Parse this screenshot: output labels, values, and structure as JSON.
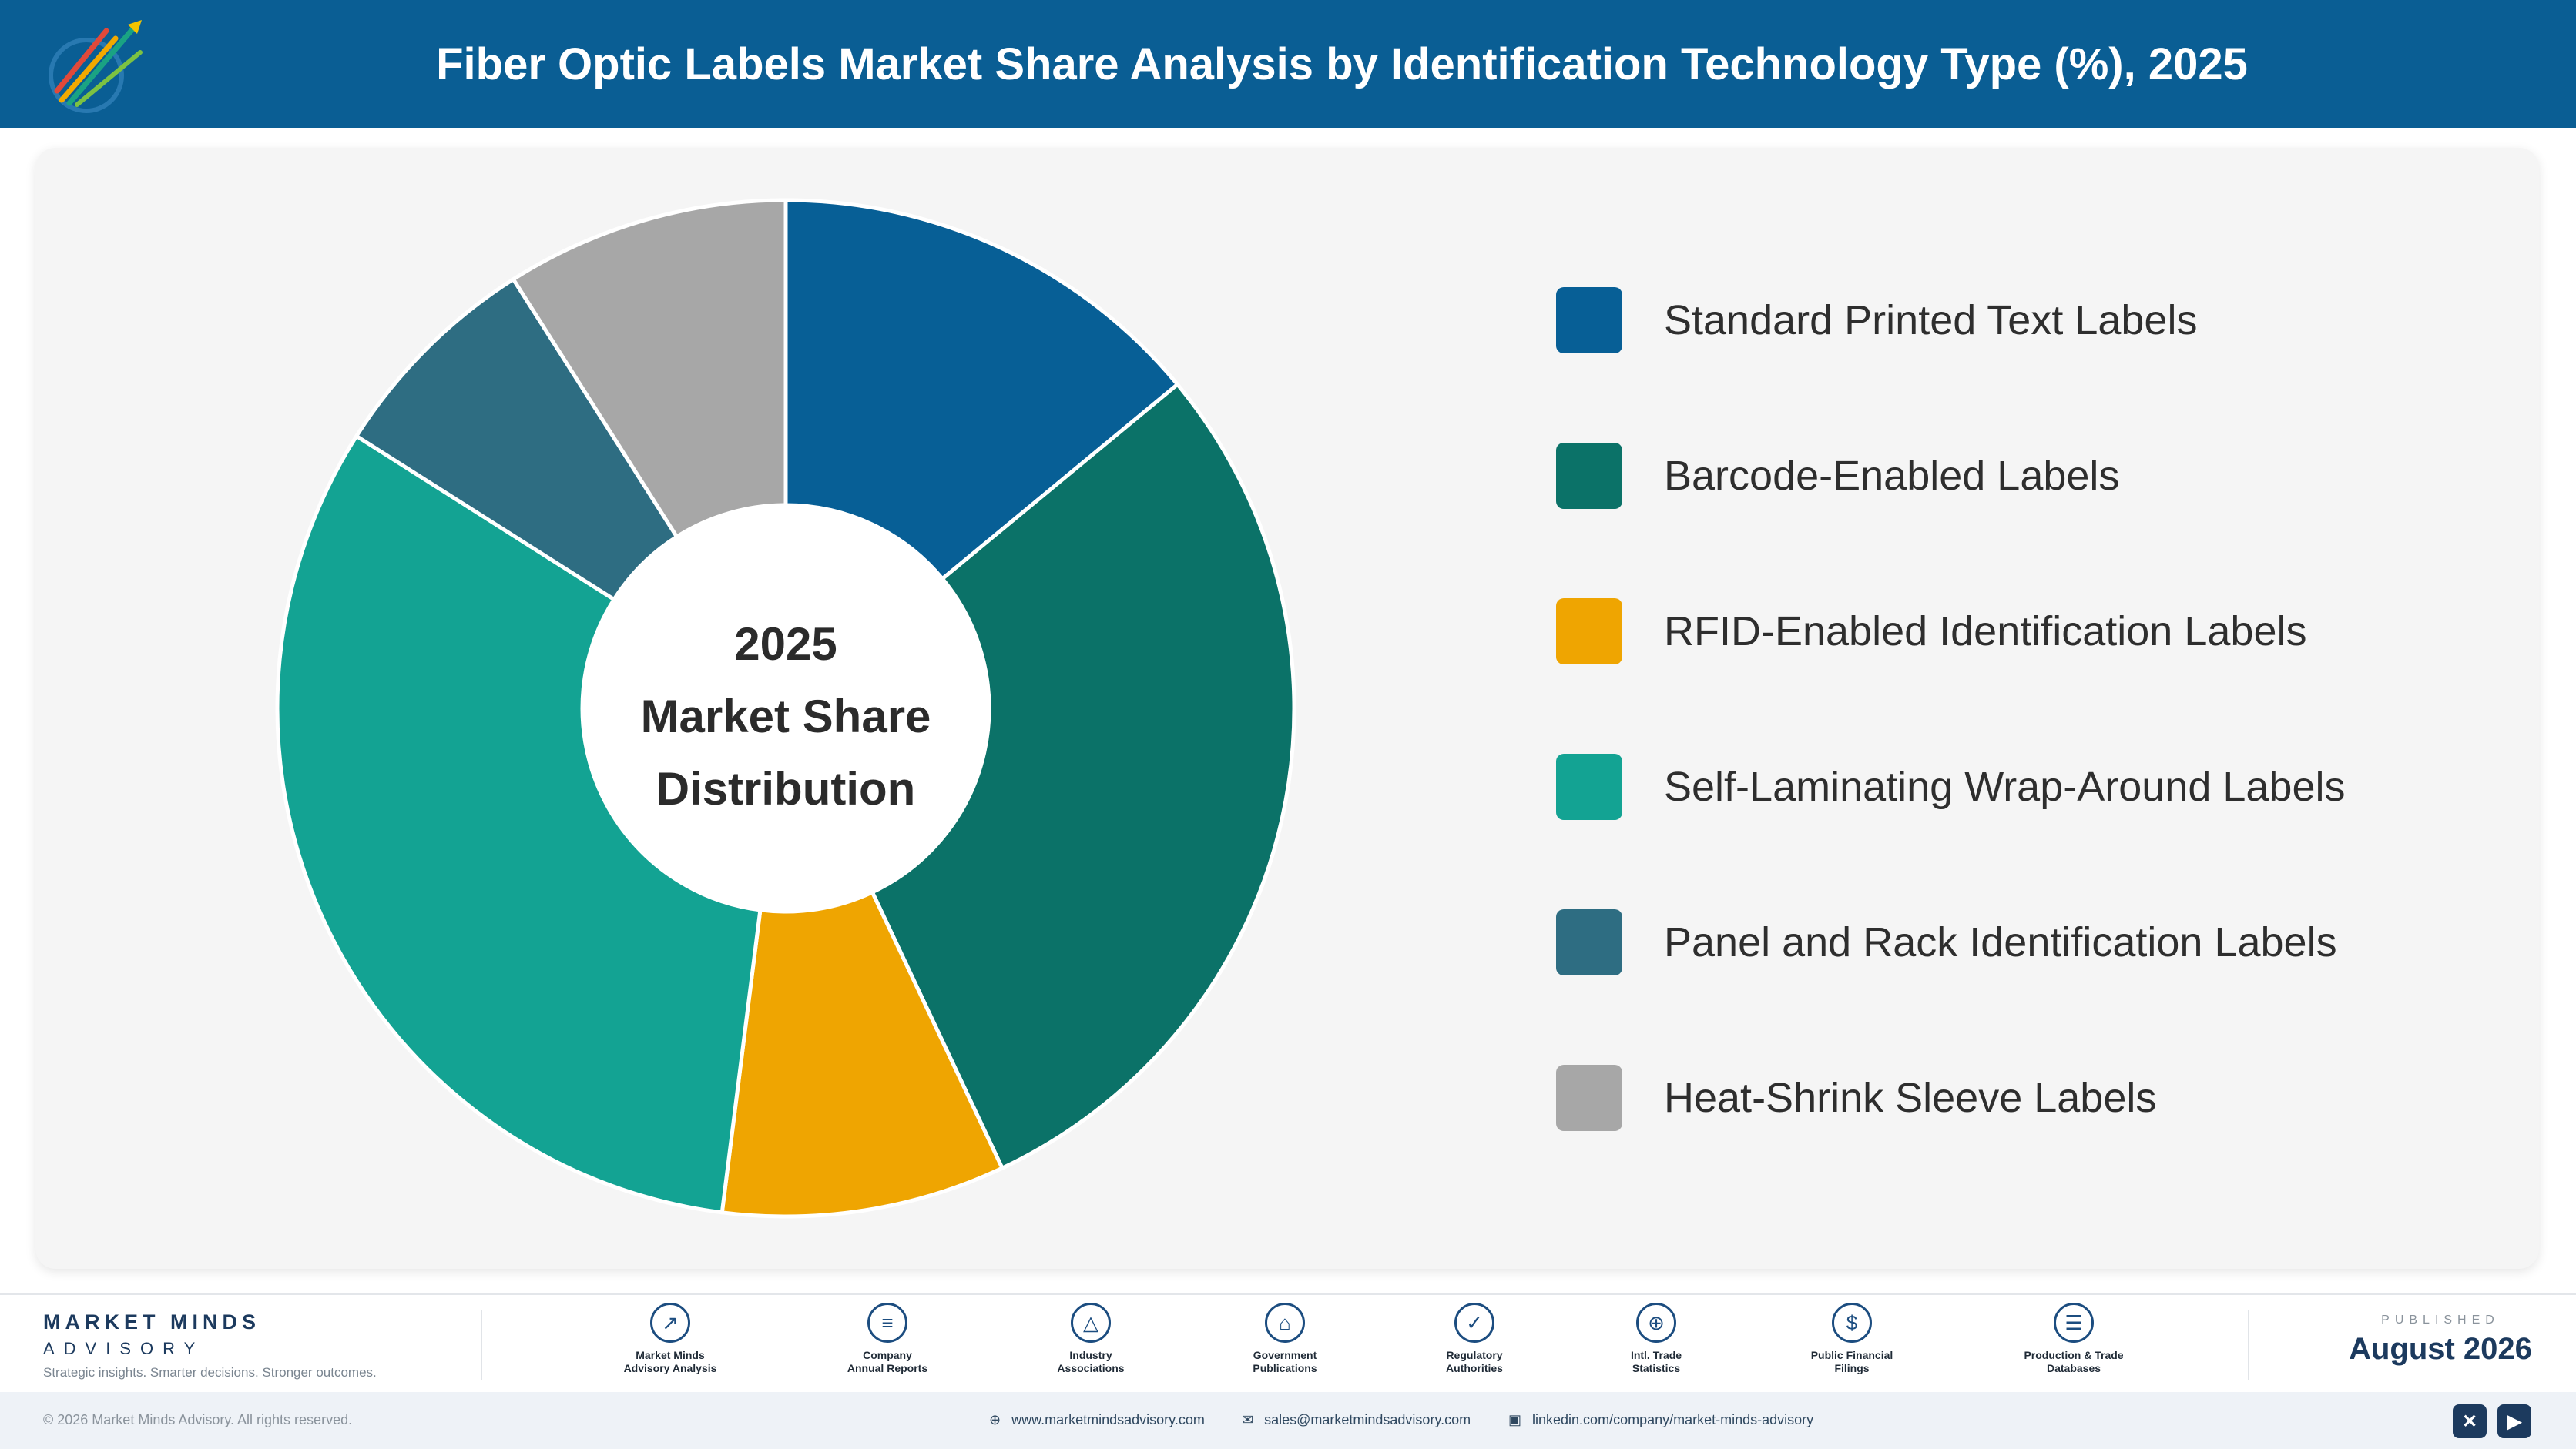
{
  "header": {
    "title": "Fiber Optic Labels Market Share Analysis by Identification Technology Type (%), 2025"
  },
  "chart_data": {
    "type": "pie",
    "title": "Fiber Optic Labels Market Share Analysis by Identification Technology Type (%), 2025",
    "center_text": [
      "2025",
      "Market Share",
      "Distribution"
    ],
    "categories": [
      "Standard Printed Text Labels",
      "Barcode-Enabled Labels",
      "RFID-Enabled Identification Labels",
      "Self-Laminating Wrap-Around Labels",
      "Panel and Rack Identification Labels",
      "Heat-Shrink Sleeve Labels"
    ],
    "values": [
      14,
      29,
      9,
      32,
      7,
      9
    ],
    "colors": [
      "#075f96",
      "#0b7268",
      "#efa501",
      "#13a393",
      "#2e6d82",
      "#a7a7a7"
    ],
    "legend_position": "right",
    "inner_radius_ratio": 0.4
  },
  "footer": {
    "brand": {
      "name": "MARKET MINDS",
      "sub": "ADVISORY",
      "tagline": "Strategic insights. Smarter decisions. Stronger outcomes."
    },
    "sources": [
      {
        "icon": "trend-chart-icon",
        "glyph": "↗",
        "line1": "Market Minds",
        "line2": "Advisory Analysis"
      },
      {
        "icon": "document-icon",
        "glyph": "≡",
        "line1": "Company",
        "line2": "Annual Reports"
      },
      {
        "icon": "network-icon",
        "glyph": "△",
        "line1": "Industry",
        "line2": "Associations"
      },
      {
        "icon": "government-building-icon",
        "glyph": "⌂",
        "line1": "Government",
        "line2": "Publications"
      },
      {
        "icon": "shield-check-icon",
        "glyph": "✓",
        "line1": "Regulatory",
        "line2": "Authorities"
      },
      {
        "icon": "globe-icon",
        "glyph": "⊕",
        "line1": "Intl. Trade",
        "line2": "Statistics"
      },
      {
        "icon": "dollar-coin-icon",
        "glyph": "$",
        "line1": "Public Financial",
        "line2": "Filings"
      },
      {
        "icon": "database-icon",
        "glyph": "☰",
        "line1": "Production & Trade",
        "line2": "Databases"
      }
    ],
    "published_label": "PUBLISHED",
    "published_date": "August 2026",
    "copyright": "© 2026 Market Minds Advisory. All rights reserved.",
    "website": "www.marketmindsadvisory.com",
    "email": "sales@marketmindsadvisory.com",
    "linkedin": "linkedin.com/company/market-minds-advisory",
    "social_icons": [
      "x-icon",
      "youtube-icon"
    ]
  }
}
